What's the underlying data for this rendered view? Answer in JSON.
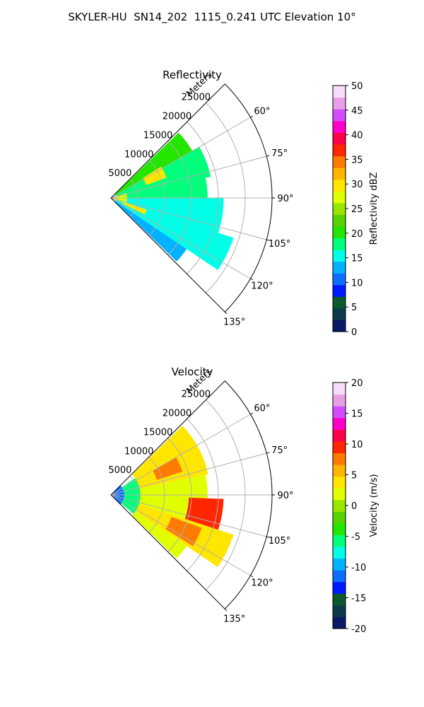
{
  "title": "SKYLER-HU  SN14_202  1115_0.241 UTC Elevation 10°",
  "chart_data": [
    {
      "type": "heatmap",
      "projection": "polar-sector",
      "title": "Reflectivity",
      "radial_label": "Meters",
      "azimuth_range_deg": [
        45,
        135
      ],
      "range_limit_m": 30000,
      "radial_ticks": [
        5000,
        10000,
        15000,
        20000,
        25000
      ],
      "radial_tick_labels": [
        "5000",
        "10000",
        "15000",
        "20000",
        "25000"
      ],
      "angle_ticks": [
        60,
        75,
        90,
        105,
        120,
        135
      ],
      "angle_tick_labels": [
        "60°",
        "75°",
        "90°",
        "105°",
        "120°",
        "135°"
      ],
      "grid": true,
      "colorbar": {
        "label": "Reflectivity dBZ",
        "range": [
          0,
          50
        ],
        "ticks": [
          0,
          5,
          10,
          15,
          20,
          25,
          30,
          35,
          40,
          45,
          50
        ],
        "colors": [
          "#0a1a66",
          "#0c3a4a",
          "#0b5a2e",
          "#0018ff",
          "#0b6eff",
          "#00b2ff",
          "#00ffe6",
          "#00ff7a",
          "#22e600",
          "#56d300",
          "#9be600",
          "#e0ff00",
          "#ffe600",
          "#ffb400",
          "#ff7a00",
          "#ff2600",
          "#ff004a",
          "#ff00cc",
          "#d24dff",
          "#e89fe8",
          "#f7dcf7"
        ]
      },
      "data_regions": [
        {
          "az_min": 46,
          "az_max": 60,
          "r_min_m": 1000,
          "r_max_m": 17500,
          "value": 20
        },
        {
          "az_min": 60,
          "az_max": 78,
          "r_min_m": 1000,
          "r_max_m": 19000,
          "value": 18
        },
        {
          "az_min": 78,
          "az_max": 90,
          "r_min_m": 1000,
          "r_max_m": 18000,
          "value": 17
        },
        {
          "az_min": 90,
          "az_max": 108,
          "r_min_m": 1000,
          "r_max_m": 21000,
          "value": 16
        },
        {
          "az_min": 108,
          "az_max": 124,
          "r_min_m": 1000,
          "r_max_m": 24000,
          "value": 16
        },
        {
          "az_min": 124,
          "az_max": 134,
          "r_min_m": 1000,
          "r_max_m": 17000,
          "value": 14
        },
        {
          "az_min": 58,
          "az_max": 70,
          "r_min_m": 7000,
          "r_max_m": 11000,
          "value": 30
        },
        {
          "az_min": 108,
          "az_max": 116,
          "r_min_m": 2500,
          "r_max_m": 7000,
          "value": 29
        },
        {
          "az_min": 72,
          "az_max": 110,
          "r_min_m": 0,
          "r_max_m": 3000,
          "value": 27
        }
      ]
    },
    {
      "type": "heatmap",
      "projection": "polar-sector",
      "title": "Velocity",
      "radial_label": "Meters",
      "azimuth_range_deg": [
        45,
        135
      ],
      "range_limit_m": 30000,
      "radial_ticks": [
        5000,
        10000,
        15000,
        20000,
        25000
      ],
      "radial_tick_labels": [
        "5000",
        "10000",
        "15000",
        "20000",
        "25000"
      ],
      "angle_ticks": [
        60,
        75,
        90,
        105,
        120,
        135
      ],
      "angle_tick_labels": [
        "60°",
        "75°",
        "90°",
        "105°",
        "120°",
        "135°"
      ],
      "grid": true,
      "colorbar": {
        "label": "Velocity (m/s)",
        "range": [
          -20,
          20
        ],
        "ticks": [
          -20,
          -15,
          -10,
          -5,
          0,
          5,
          10,
          15,
          20
        ],
        "colors": [
          "#0a1a66",
          "#0c3a4a",
          "#0b5a2e",
          "#0018ff",
          "#0b6eff",
          "#00b2ff",
          "#00ffe6",
          "#00ff7a",
          "#22e600",
          "#56d300",
          "#9be600",
          "#e0ff00",
          "#ffe600",
          "#ffb400",
          "#ff7a00",
          "#ff2600",
          "#ff004a",
          "#ff00cc",
          "#d24dff",
          "#e89fe8",
          "#f7dcf7"
        ]
      },
      "data_regions": [
        {
          "az_min": 46,
          "az_max": 134,
          "r_min_m": 0,
          "r_max_m": 2500,
          "value": -11
        },
        {
          "az_min": 55,
          "az_max": 130,
          "r_min_m": 2500,
          "r_max_m": 5500,
          "value": -5
        },
        {
          "az_min": 46,
          "az_max": 78,
          "r_min_m": 5500,
          "r_max_m": 18500,
          "value": 3
        },
        {
          "az_min": 78,
          "az_max": 92,
          "r_min_m": 5500,
          "r_max_m": 18000,
          "value": 2
        },
        {
          "az_min": 92,
          "az_max": 108,
          "r_min_m": 5500,
          "r_max_m": 14500,
          "value": 2
        },
        {
          "az_min": 92,
          "az_max": 108,
          "r_min_m": 14500,
          "r_max_m": 21000,
          "value": 9
        },
        {
          "az_min": 108,
          "az_max": 124,
          "r_min_m": 5500,
          "r_max_m": 24000,
          "value": 4
        },
        {
          "az_min": 124,
          "az_max": 134,
          "r_min_m": 5500,
          "r_max_m": 17000,
          "value": 2
        },
        {
          "az_min": 60,
          "az_max": 72,
          "r_min_m": 9000,
          "r_max_m": 14000,
          "value": 7
        },
        {
          "az_min": 110,
          "az_max": 122,
          "r_min_m": 12000,
          "r_max_m": 18000,
          "value": 8
        }
      ]
    }
  ]
}
